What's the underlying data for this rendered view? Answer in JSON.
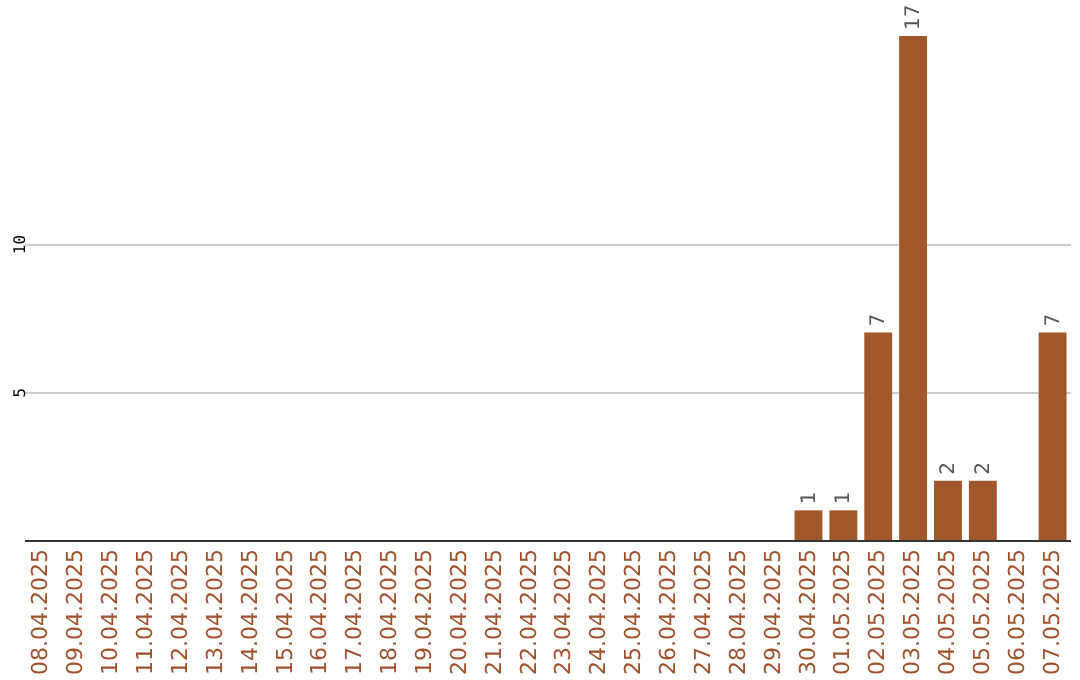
{
  "chart_data": {
    "type": "bar",
    "categories": [
      "08.04.2025",
      "09.04.2025",
      "10.04.2025",
      "11.04.2025",
      "12.04.2025",
      "13.04.2025",
      "14.04.2025",
      "15.04.2025",
      "16.04.2025",
      "17.04.2025",
      "18.04.2025",
      "19.04.2025",
      "20.04.2025",
      "21.04.2025",
      "22.04.2025",
      "23.04.2025",
      "24.04.2025",
      "25.04.2025",
      "26.04.2025",
      "27.04.2025",
      "28.04.2025",
      "29.04.2025",
      "30.04.2025",
      "01.05.2025",
      "02.05.2025",
      "03.05.2025",
      "04.05.2025",
      "05.05.2025",
      "06.05.2025",
      "07.05.2025"
    ],
    "values": [
      0,
      0,
      0,
      0,
      0,
      0,
      0,
      0,
      0,
      0,
      0,
      0,
      0,
      0,
      0,
      0,
      0,
      0,
      0,
      0,
      0,
      0,
      1,
      1,
      7,
      17,
      2,
      2,
      0,
      7
    ],
    "value_labels": [
      null,
      null,
      null,
      null,
      null,
      null,
      null,
      null,
      null,
      null,
      null,
      null,
      null,
      null,
      null,
      null,
      null,
      null,
      null,
      null,
      null,
      null,
      "1",
      "1",
      "7",
      "17",
      "2",
      "2",
      null,
      "7"
    ],
    "color": "#a0572a",
    "ylim": [
      0,
      17
    ],
    "yticks": [
      5,
      10
    ],
    "grid": "y"
  }
}
